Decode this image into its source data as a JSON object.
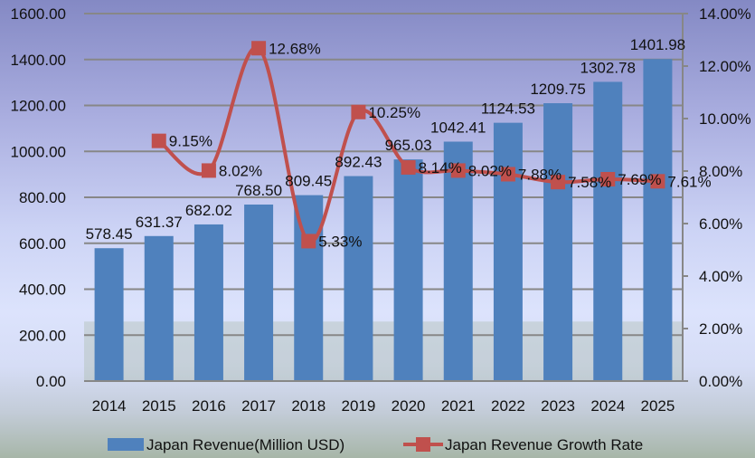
{
  "chart_data": {
    "type": "bar+line",
    "categories": [
      "2014",
      "2015",
      "2016",
      "2017",
      "2018",
      "2019",
      "2020",
      "2021",
      "2022",
      "2023",
      "2024",
      "2025"
    ],
    "series": [
      {
        "name": "Japan Revenue(Million USD)",
        "type": "bar",
        "axis": "left",
        "color": "#4f81bd",
        "values": [
          578.45,
          631.37,
          682.02,
          768.5,
          809.45,
          892.43,
          965.03,
          1042.41,
          1124.53,
          1209.75,
          1302.78,
          1401.98
        ],
        "labels": [
          "578.45",
          "631.37",
          "682.02",
          "768.50",
          "809.45",
          "892.43",
          "965.03",
          "1042.41",
          "1124.53",
          "1209.75",
          "1302.78",
          "1401.98"
        ]
      },
      {
        "name": "Japan Revenue Growth Rate",
        "type": "line",
        "axis": "right",
        "color": "#c0504d",
        "smooth": true,
        "values": [
          null,
          9.15,
          8.02,
          12.68,
          5.33,
          10.25,
          8.14,
          8.02,
          7.88,
          7.58,
          7.69,
          7.61
        ],
        "labels": [
          null,
          "9.15%",
          "8.02%",
          "12.68%",
          "5.33%",
          "10.25%",
          "8.14%",
          "8.02%",
          "7.88%",
          "7.58%",
          "7.69%",
          "7.61%"
        ]
      }
    ],
    "ylim": [
      0,
      1600
    ],
    "yticks": [
      "0.00",
      "200.00",
      "400.00",
      "600.00",
      "800.00",
      "1000.00",
      "1200.00",
      "1400.00",
      "1600.00"
    ],
    "y2lim": [
      0,
      14
    ],
    "y2ticks": [
      "0.00%",
      "2.00%",
      "4.00%",
      "6.00%",
      "8.00%",
      "10.00%",
      "12.00%",
      "14.00%"
    ],
    "grid": true,
    "legend": "bottom"
  }
}
